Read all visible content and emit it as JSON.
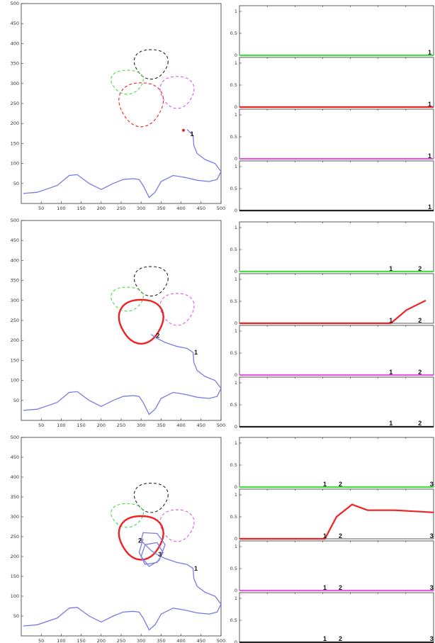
{
  "colors": {
    "trajectory": "#7a7ae6",
    "green": "#44dd44",
    "red": "#ee2222",
    "magenta": "#e15be1",
    "black": "#222222"
  },
  "chart_data": [
    {
      "type": "line",
      "panel": "top",
      "xlim": [
        0,
        500
      ],
      "ylim": [
        0,
        500
      ],
      "xticks": [
        50,
        100,
        150,
        200,
        250,
        300,
        350,
        400,
        450,
        500
      ],
      "yticks": [
        50,
        100,
        150,
        200,
        250,
        300,
        350,
        400,
        450,
        500
      ],
      "trajectory_xy": [
        [
          5,
          25
        ],
        [
          40,
          28
        ],
        [
          90,
          45
        ],
        [
          120,
          70
        ],
        [
          140,
          72
        ],
        [
          170,
          50
        ],
        [
          200,
          35
        ],
        [
          230,
          50
        ],
        [
          255,
          60
        ],
        [
          280,
          62
        ],
        [
          295,
          60
        ],
        [
          305,
          45
        ],
        [
          320,
          15
        ],
        [
          335,
          28
        ],
        [
          350,
          55
        ],
        [
          380,
          70
        ],
        [
          410,
          65
        ],
        [
          440,
          58
        ],
        [
          470,
          55
        ],
        [
          490,
          60
        ],
        [
          500,
          80
        ],
        [
          485,
          100
        ],
        [
          460,
          110
        ],
        [
          440,
          125
        ],
        [
          432,
          145
        ],
        [
          430,
          170
        ],
        [
          415,
          185
        ]
      ],
      "current_label": "1",
      "current_point": [
        406,
        183
      ],
      "regions": [
        {
          "color": "black",
          "center": [
            325,
            350
          ],
          "rx": 42,
          "ry": 37
        },
        {
          "color": "green",
          "center": [
            265,
            305
          ],
          "rx": 40,
          "ry": 30
        },
        {
          "color": "magenta",
          "center": [
            390,
            280
          ],
          "rx": 42,
          "ry": 40
        },
        {
          "color": "red",
          "center": [
            300,
            250
          ],
          "rx": 55,
          "ry": 55
        }
      ]
    },
    {
      "type": "line",
      "panel": "middle",
      "xlim": [
        0,
        500
      ],
      "ylim": [
        0,
        500
      ],
      "xticks": [
        50,
        100,
        150,
        200,
        250,
        300,
        350,
        400,
        450,
        500
      ],
      "yticks": [
        50,
        100,
        150,
        200,
        250,
        300,
        350,
        400,
        450,
        500
      ],
      "trajectory_xy": [
        [
          5,
          25
        ],
        [
          40,
          28
        ],
        [
          90,
          45
        ],
        [
          120,
          70
        ],
        [
          140,
          72
        ],
        [
          170,
          50
        ],
        [
          200,
          35
        ],
        [
          230,
          50
        ],
        [
          255,
          60
        ],
        [
          280,
          62
        ],
        [
          295,
          60
        ],
        [
          305,
          45
        ],
        [
          320,
          15
        ],
        [
          335,
          28
        ],
        [
          350,
          55
        ],
        [
          380,
          70
        ],
        [
          410,
          65
        ],
        [
          440,
          58
        ],
        [
          470,
          55
        ],
        [
          490,
          60
        ],
        [
          500,
          80
        ],
        [
          485,
          100
        ],
        [
          460,
          110
        ],
        [
          440,
          125
        ],
        [
          432,
          145
        ],
        [
          430,
          170
        ],
        [
          415,
          180
        ],
        [
          390,
          185
        ],
        [
          360,
          195
        ],
        [
          340,
          205
        ],
        [
          325,
          215
        ]
      ],
      "labels": [
        {
          "text": "1",
          "x": 430,
          "y": 170
        },
        {
          "text": "2",
          "x": 335,
          "y": 212
        }
      ],
      "highlighted": "red"
    },
    {
      "type": "line",
      "panel": "bottom",
      "xlim": [
        0,
        500
      ],
      "ylim": [
        0,
        500
      ],
      "xticks": [
        50,
        100,
        150,
        200,
        250,
        300,
        350,
        400,
        450,
        500
      ],
      "yticks": [
        50,
        100,
        150,
        200,
        250,
        300,
        350,
        400,
        450,
        500
      ],
      "labels": [
        {
          "text": "1",
          "x": 430,
          "y": 170
        },
        {
          "text": "2",
          "x": 290,
          "y": 240
        },
        {
          "text": "3",
          "x": 340,
          "y": 205
        }
      ],
      "highlighted": "red"
    },
    {
      "type": "line",
      "panel": "top-right",
      "series": [
        {
          "color": "green",
          "values": [
            [
              0,
              0
            ],
            [
              1,
              0
            ]
          ]
        },
        {
          "color": "red",
          "values": [
            [
              0,
              0
            ],
            [
              1,
              0
            ]
          ]
        },
        {
          "color": "magenta",
          "values": [
            [
              0,
              0
            ],
            [
              1,
              0
            ]
          ]
        },
        {
          "color": "black",
          "values": [
            [
              0,
              0
            ],
            [
              1,
              0
            ]
          ]
        }
      ],
      "ylim": [
        0,
        1
      ],
      "yticks": [
        0,
        0.5,
        1
      ],
      "markers": [
        "1"
      ]
    },
    {
      "type": "line",
      "panel": "middle-right",
      "series": [
        {
          "color": "green",
          "values": [
            [
              0,
              0
            ],
            [
              1,
              0
            ]
          ]
        },
        {
          "color": "red",
          "values": [
            [
              0,
              0
            ],
            [
              0.78,
              0
            ],
            [
              0.86,
              0.3
            ],
            [
              0.96,
              0.52
            ]
          ]
        },
        {
          "color": "magenta",
          "values": [
            [
              0,
              0
            ],
            [
              1,
              0
            ]
          ]
        },
        {
          "color": "black",
          "values": [
            [
              0,
              0
            ],
            [
              1,
              0
            ]
          ]
        }
      ],
      "ylim": [
        0,
        1
      ],
      "yticks": [
        0,
        0.5,
        1
      ],
      "markers": [
        "1",
        "2"
      ]
    },
    {
      "type": "line",
      "panel": "bottom-right",
      "series": [
        {
          "color": "green",
          "values": [
            [
              0,
              0
            ],
            [
              1,
              0
            ]
          ]
        },
        {
          "color": "red",
          "values": [
            [
              0,
              0
            ],
            [
              0.44,
              0
            ],
            [
              0.5,
              0.5
            ],
            [
              0.58,
              0.78
            ],
            [
              0.66,
              0.65
            ],
            [
              0.8,
              0.65
            ],
            [
              1,
              0.6
            ]
          ]
        },
        {
          "color": "magenta",
          "values": [
            [
              0,
              0
            ],
            [
              1,
              0
            ]
          ]
        },
        {
          "color": "black",
          "values": [
            [
              0,
              0
            ],
            [
              1,
              0
            ]
          ]
        }
      ],
      "ylim": [
        0,
        1
      ],
      "yticks": [
        0,
        0.5,
        1
      ],
      "markers": [
        "1",
        "2",
        "3"
      ]
    }
  ]
}
